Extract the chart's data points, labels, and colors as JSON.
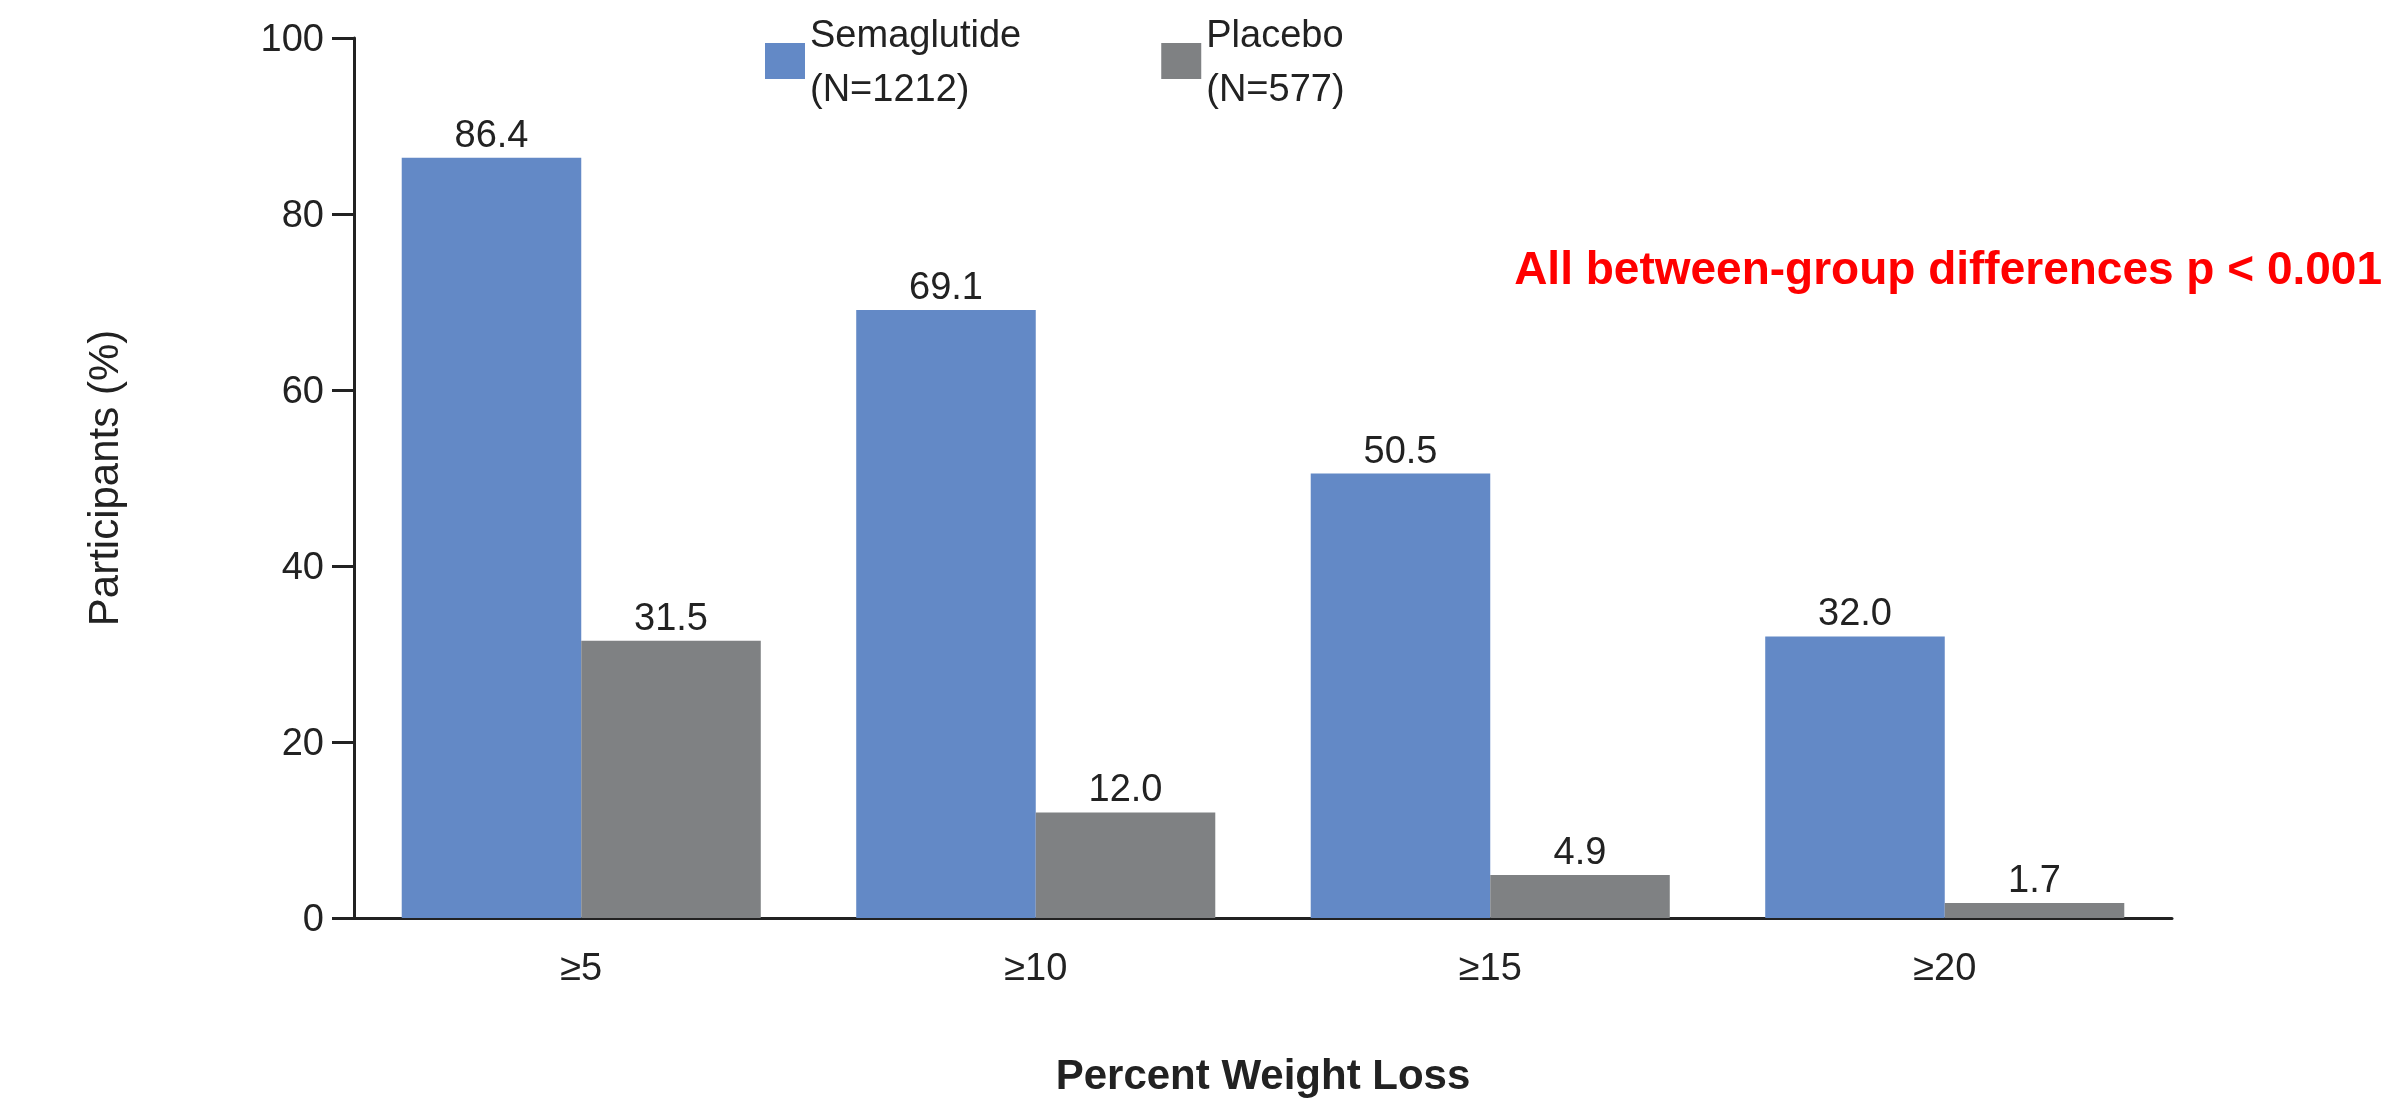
{
  "chart_data": {
    "type": "bar",
    "xlabel": "Percent Weight Loss",
    "ylabel": "Participants (%)",
    "categories": [
      "≥5",
      "≥10",
      "≥15",
      "≥20"
    ],
    "series": [
      {
        "name": "Semaglutide\n(N=1212)",
        "color": "#6389c6",
        "values": [
          86.4,
          69.1,
          50.5,
          32.0
        ]
      },
      {
        "name": "Placebo\n(N=577)",
        "color": "#7f8183",
        "values": [
          31.5,
          12.0,
          4.9,
          1.7
        ]
      }
    ],
    "value_labels": [
      [
        "86.4",
        "69.1",
        "50.5",
        "32.0"
      ],
      [
        "31.5",
        "12.0",
        "4.9",
        "1.7"
      ]
    ],
    "ylim": [
      0,
      100
    ],
    "yticks": [
      0,
      20,
      40,
      60,
      80,
      100
    ],
    "grid": false,
    "legend": "top",
    "annotations": [
      "All between-group differences p < 0.001"
    ]
  }
}
